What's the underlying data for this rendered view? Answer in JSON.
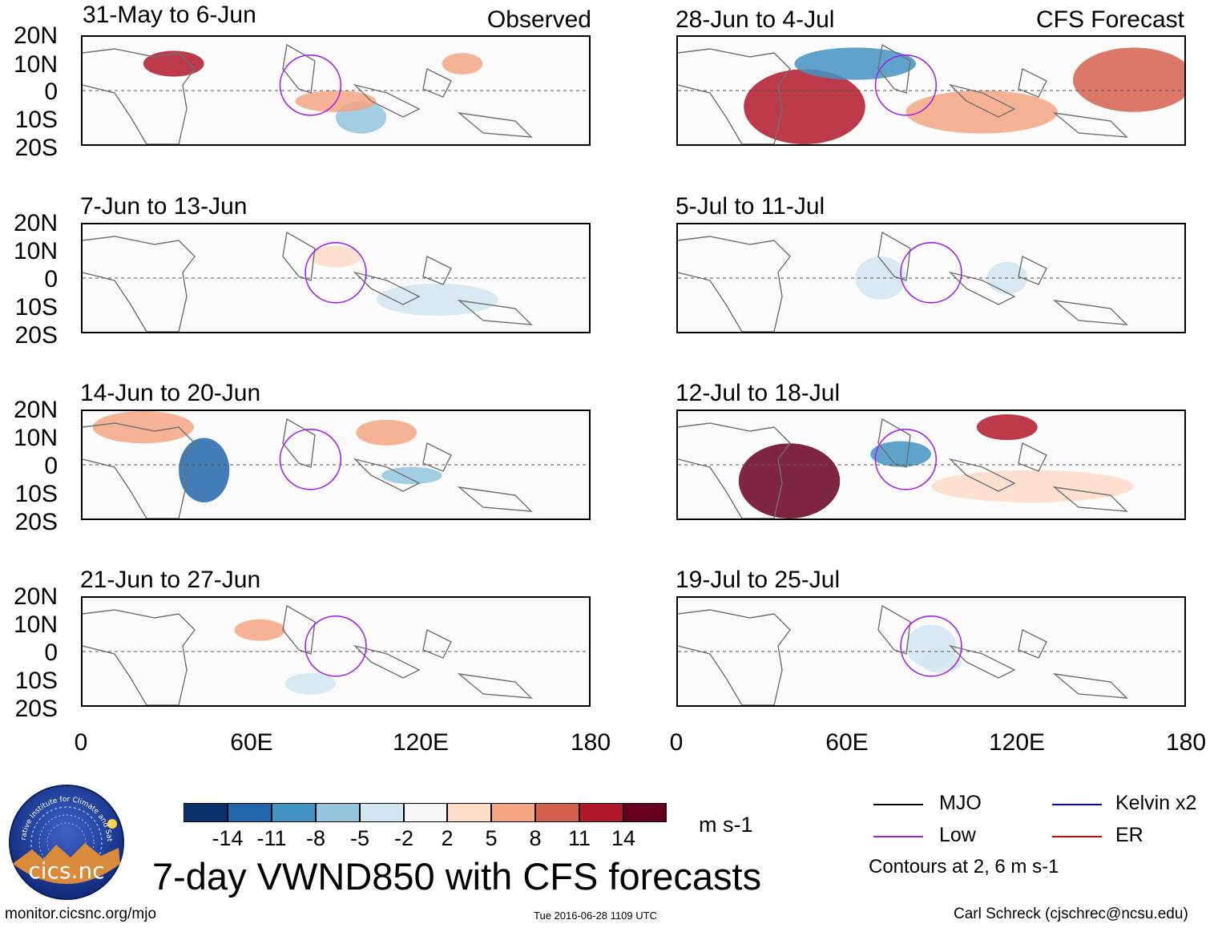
{
  "panels": {
    "observed_tag": "Observed",
    "forecast_tag": "CFS Forecast",
    "left": [
      {
        "title": "31-May to 6-Jun"
      },
      {
        "title": "7-Jun to 13-Jun"
      },
      {
        "title": "14-Jun to 20-Jun"
      },
      {
        "title": "21-Jun to 27-Jun"
      }
    ],
    "right": [
      {
        "title": "28-Jun to 4-Jul"
      },
      {
        "title": "5-Jul to 11-Jul"
      },
      {
        "title": "12-Jul to 18-Jul"
      },
      {
        "title": "19-Jul to 25-Jul"
      }
    ]
  },
  "axes": {
    "lat_ticks": [
      "20N",
      "10N",
      "0",
      "10S",
      "20S"
    ],
    "lon_ticks": [
      "0",
      "60E",
      "120E",
      "180"
    ]
  },
  "colorbar": {
    "labels": [
      "-14",
      "-11",
      "-8",
      "-5",
      "-2",
      "2",
      "5",
      "8",
      "11",
      "14"
    ],
    "colors": [
      "#08306b",
      "#2166ac",
      "#4393c3",
      "#92c5de",
      "#d1e5f0",
      "#f7f7f7",
      "#fddbc7",
      "#f4a582",
      "#d6604d",
      "#b2182b",
      "#67001f"
    ],
    "units": "m s-1"
  },
  "legend": {
    "items": [
      {
        "label": "MJO",
        "color": "#000000"
      },
      {
        "label": "Kelvin x2",
        "color": "#0000e0"
      },
      {
        "label": "Low",
        "color": "#a020f0"
      },
      {
        "label": "ER",
        "color": "#e00000"
      }
    ],
    "contours_note": "Contours at 2, 6 m s-1"
  },
  "main_title": "7-day VWND850 with CFS forecasts",
  "logo_text": "cics.nc",
  "logo_ring_text": "Cooperative Institute for Climate and Satellites",
  "footer": {
    "url": "monitor.cicsnc.org/mjo",
    "timestamp": "Tue 2016-06-28 1109 UTC",
    "credit": "Carl Schreck (cjschrec@ncsu.edu)"
  }
}
